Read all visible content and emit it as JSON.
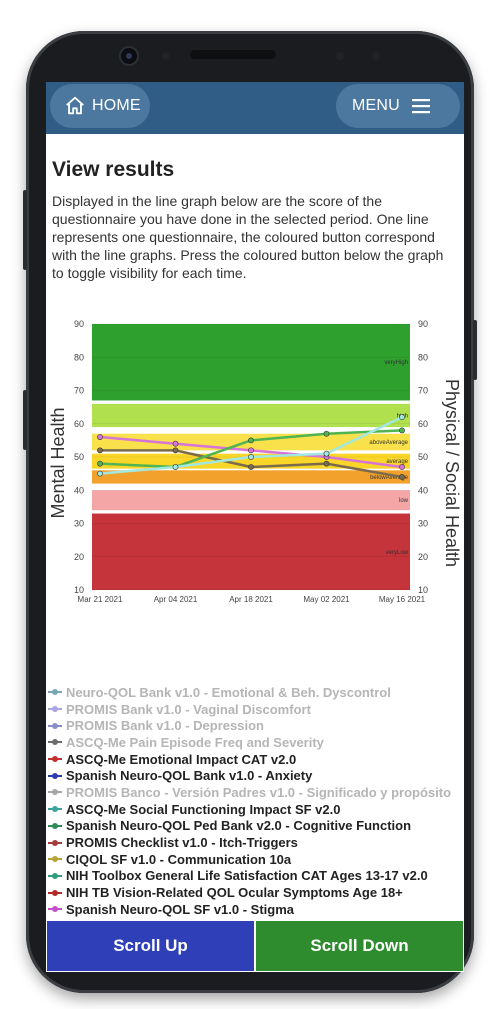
{
  "header": {
    "home_label": "HOME",
    "menu_label": "MENU"
  },
  "page": {
    "title": "View results",
    "description": "Displayed in the line graph below are the score of the questionnaire you have done in the selected period. One line represents one questionnaire, the coloured button correspond with the line graphs. Press the coloured button below the graph to toggle visibility for each time."
  },
  "chart_data": {
    "type": "line",
    "ylabel_left": "Mental Health",
    "ylabel_right": "Physical / Social Health",
    "ylim": [
      10,
      90
    ],
    "yticks": [
      "10",
      "20",
      "30",
      "40",
      "50",
      "60",
      "70",
      "80",
      "90"
    ],
    "x": [
      "Mar 21 2021",
      "Apr 04 2021",
      "Apr 18 2021",
      "May 02 2021",
      "May 16 2021"
    ],
    "bands": [
      {
        "label": "veryLow",
        "from": 10,
        "to": 33,
        "color": "#c4343a"
      },
      {
        "label": "low",
        "from": 34,
        "to": 40,
        "color": "#f4a6a6"
      },
      {
        "label": "belowAverage",
        "from": 42,
        "to": 46,
        "color": "#f2a22c"
      },
      {
        "label": "average",
        "from": 46.5,
        "to": 51,
        "color": "#fad628"
      },
      {
        "label": "aboveAverage",
        "from": 52,
        "to": 57,
        "color": "#f8e14b"
      },
      {
        "label": "high",
        "from": 59,
        "to": 66,
        "color": "#b1e04e"
      },
      {
        "label": "veryHigh",
        "from": 67,
        "to": 90,
        "color": "#2ea02e"
      }
    ],
    "series": [
      {
        "values": [
          56,
          54,
          52,
          50,
          47
        ],
        "color": "#d774d7"
      },
      {
        "values": [
          52,
          52,
          47,
          48,
          44
        ],
        "color": "#7a6b4d"
      },
      {
        "values": [
          48,
          47,
          55,
          57,
          58
        ],
        "color": "#50b450"
      },
      {
        "values": [
          45,
          47,
          50,
          51,
          62
        ],
        "color": "#a0e8e0"
      }
    ]
  },
  "legend": [
    {
      "label": "Neuro-QOL Bank v1.0 - Emotional & Beh. Dyscontrol",
      "color": "#7aa6b3",
      "text_color": "#b5b5b5"
    },
    {
      "label": "PROMIS Bank v1.0 - Vaginal Discomfort",
      "color": "#a9a6e3",
      "text_color": "#b5b5b5"
    },
    {
      "label": "PROMIS Bank v1.0 - Depression",
      "color": "#8a8fc8",
      "text_color": "#b5b5b5"
    },
    {
      "label": "ASCQ-Me Pain Episode Freq and Severity",
      "color": "#6c6c6c",
      "text_color": "#b5b5b5"
    },
    {
      "label": "ASCQ-Me Emotional Impact CAT v2.0",
      "color": "#c2302f",
      "text_color": "#222222"
    },
    {
      "label": "Spanish Neuro-QOL Bank v1.0 - Anxiety",
      "color": "#2d3bb0",
      "text_color": "#222222"
    },
    {
      "label": "PROMIS Banco - Versión Padres v1.0 - Significado y propósito",
      "color": "#a6a6a6",
      "text_color": "#b5b5b5"
    },
    {
      "label": "ASCQ-Me Social Functioning Impact SF v2.0",
      "color": "#3aa39b",
      "text_color": "#222222"
    },
    {
      "label": "Spanish Neuro-QOL Ped Bank v2.0 - Cognitive Function",
      "color": "#2e8a58",
      "text_color": "#222222"
    },
    {
      "label": "PROMIS Checklist v1.0 - Itch-Triggers",
      "color": "#a33c3c",
      "text_color": "#222222"
    },
    {
      "label": "CIQOL SF v1.0 - Communication 10a",
      "color": "#b4a43a",
      "text_color": "#222222"
    },
    {
      "label": "NIH Toolbox General Life Satisfaction CAT Ages 13-17 v2.0",
      "color": "#2f9f7f",
      "text_color": "#222222"
    },
    {
      "label": "NIH TB Vision-Related QOL Ocular Symptoms Age 18+",
      "color": "#b22a2a",
      "text_color": "#222222"
    },
    {
      "label": "Spanish Neuro-QOL SF v1.0 - Stigma",
      "color": "#c44fc7",
      "text_color": "#222222"
    }
  ],
  "footer": {
    "scroll_up_label": "Scroll Up",
    "scroll_down_label": "Scroll Down",
    "scroll_up_color": "#2f3fb7",
    "scroll_down_color": "#2e8b2e"
  }
}
